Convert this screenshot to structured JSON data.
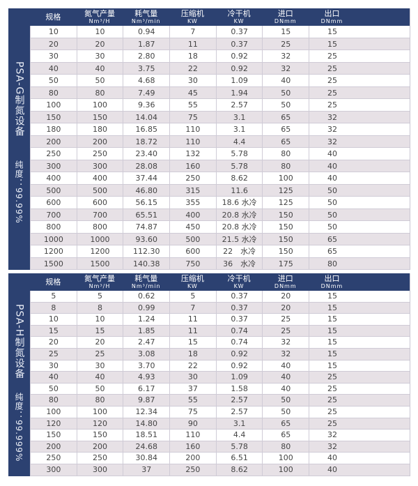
{
  "columns": [
    {
      "title": "规格",
      "unit": ""
    },
    {
      "title": "氮气产量",
      "unit": "Nm³/H"
    },
    {
      "title": "耗气量",
      "unit": "Nm³/min"
    },
    {
      "title": "压缩机",
      "unit": "KW"
    },
    {
      "title": "冷干机",
      "unit": "KW"
    },
    {
      "title": "进口",
      "unit": "DNmm"
    },
    {
      "title": "出口",
      "unit": "DNmm"
    }
  ],
  "tables": [
    {
      "name": "PSA-G制氮设备",
      "purity": "纯度：99.99%",
      "rows": [
        [
          "10",
          "10",
          "0.94",
          "7",
          "0.37",
          "15",
          "15"
        ],
        [
          "20",
          "20",
          "1.87",
          "11",
          "0.37",
          "25",
          "15"
        ],
        [
          "30",
          "30",
          "2.80",
          "18",
          "0.92",
          "32",
          "25"
        ],
        [
          "40",
          "40",
          "3.75",
          "22",
          "0.92",
          "32",
          "25"
        ],
        [
          "50",
          "50",
          "4.68",
          "30",
          "1.09",
          "40",
          "25"
        ],
        [
          "80",
          "80",
          "7.49",
          "45",
          "1.94",
          "50",
          "25"
        ],
        [
          "100",
          "100",
          "9.36",
          "55",
          "2.57",
          "50",
          "25"
        ],
        [
          "150",
          "150",
          "14.04",
          "75",
          "3.1",
          "65",
          "32"
        ],
        [
          "180",
          "180",
          "16.85",
          "110",
          "3.1",
          "65",
          "32"
        ],
        [
          "200",
          "200",
          "18.72",
          "110",
          "4.4",
          "65",
          "32"
        ],
        [
          "250",
          "250",
          "23.40",
          "132",
          "5.78",
          "80",
          "40"
        ],
        [
          "300",
          "300",
          "28.08",
          "160",
          "5.78",
          "80",
          "40"
        ],
        [
          "400",
          "400",
          "37.44",
          "250",
          "8.62",
          "100",
          "40"
        ],
        [
          "500",
          "500",
          "46.80",
          "315",
          "11.6",
          "125",
          "50"
        ],
        [
          "600",
          "600",
          "56.15",
          "355",
          "18.6 水冷",
          "125",
          "50"
        ],
        [
          "700",
          "700",
          "65.51",
          "400",
          "20.8 水冷",
          "150",
          "50"
        ],
        [
          "800",
          "800",
          "74.87",
          "450",
          "20.8 水冷",
          "150",
          "50"
        ],
        [
          "1000",
          "1000",
          "93.60",
          "500",
          "21.5 水冷",
          "150",
          "65"
        ],
        [
          "1200",
          "1200",
          "112.30",
          "600",
          "22　水冷",
          "150",
          "65"
        ],
        [
          "1500",
          "1500",
          "140.38",
          "750",
          "36　水冷",
          "175",
          "80"
        ]
      ]
    },
    {
      "name": "PSA-H制氮设备",
      "purity": "纯度：99.999%",
      "rows": [
        [
          "5",
          "5",
          "0.62",
          "5",
          "0.37",
          "20",
          "15"
        ],
        [
          "8",
          "8",
          "0.99",
          "7",
          "0.37",
          "20",
          "15"
        ],
        [
          "10",
          "10",
          "1.24",
          "11",
          "0.37",
          "25",
          "15"
        ],
        [
          "15",
          "15",
          "1.85",
          "11",
          "0.74",
          "25",
          "15"
        ],
        [
          "20",
          "20",
          "2.47",
          "15",
          "0.74",
          "32",
          "15"
        ],
        [
          "25",
          "25",
          "3.08",
          "18",
          "0.92",
          "32",
          "15"
        ],
        [
          "30",
          "30",
          "3.70",
          "22",
          "0.92",
          "40",
          "15"
        ],
        [
          "40",
          "40",
          "4.93",
          "30",
          "1.09",
          "40",
          "25"
        ],
        [
          "50",
          "50",
          "6.17",
          "37",
          "1.58",
          "40",
          "25"
        ],
        [
          "80",
          "80",
          "9.87",
          "55",
          "2.57",
          "50",
          "25"
        ],
        [
          "100",
          "100",
          "12.34",
          "75",
          "2.57",
          "50",
          "25"
        ],
        [
          "120",
          "120",
          "14.80",
          "90",
          "3.1",
          "65",
          "25"
        ],
        [
          "150",
          "150",
          "18.51",
          "110",
          "4.4",
          "65",
          "32"
        ],
        [
          "200",
          "200",
          "24.68",
          "160",
          "5.78",
          "80",
          "32"
        ],
        [
          "250",
          "250",
          "30.84",
          "200",
          "6.51",
          "100",
          "40"
        ],
        [
          "300",
          "300",
          "37",
          "250",
          "8.62",
          "100",
          "40"
        ]
      ]
    }
  ],
  "colors": {
    "header": "#2c4171",
    "stripe": "#e7e1e6"
  }
}
